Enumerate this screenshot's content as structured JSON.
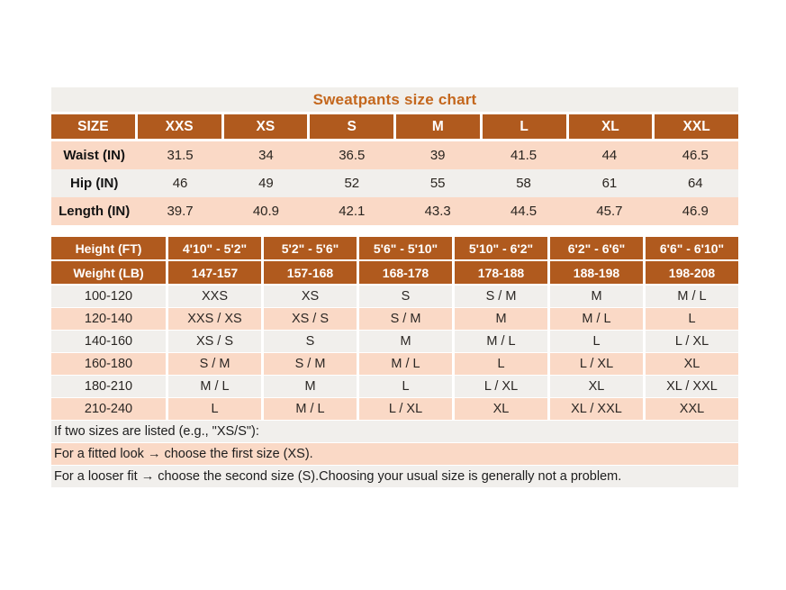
{
  "title": "Sweatpants size chart",
  "colors": {
    "header_orange": "#b05a1e",
    "title_orange": "#c4671d",
    "row_pink": "#fad9c6",
    "row_light": "#f1efec"
  },
  "size_table": {
    "header": [
      "SIZE",
      "XXS",
      "XS",
      "S",
      "M",
      "L",
      "XL",
      "XXL"
    ],
    "rows": [
      {
        "label": "Waist (IN)",
        "values": [
          "31.5",
          "34",
          "36.5",
          "39",
          "41.5",
          "44",
          "46.5"
        ]
      },
      {
        "label": "Hip (IN)",
        "values": [
          "46",
          "49",
          "52",
          "55",
          "58",
          "61",
          "64"
        ]
      },
      {
        "label": "Length (IN)",
        "values": [
          "39.7",
          "40.9",
          "42.1",
          "43.3",
          "44.5",
          "45.7",
          "46.9"
        ]
      }
    ]
  },
  "fit_table": {
    "height_header": {
      "label": "Height (FT)",
      "values": [
        "4'10\" - 5'2\"",
        "5'2\" - 5'6\"",
        "5'6\" - 5'10\"",
        "5'10\" - 6'2\"",
        "6'2\" - 6'6\"",
        "6'6\" - 6'10\""
      ]
    },
    "weight_header": {
      "label": "Weight (LB)",
      "values": [
        "147-157",
        "157-168",
        "168-178",
        "178-188",
        "188-198",
        "198-208"
      ]
    },
    "rows": [
      {
        "label": "100-120",
        "values": [
          "XXS",
          "XS",
          "S",
          "S / M",
          "M",
          "M / L"
        ]
      },
      {
        "label": "120-140",
        "values": [
          "XXS / XS",
          "XS / S",
          "S / M",
          "M",
          "M / L",
          "L"
        ]
      },
      {
        "label": "140-160",
        "values": [
          "XS / S",
          "S",
          "M",
          "M / L",
          "L",
          "L / XL"
        ]
      },
      {
        "label": "160-180",
        "values": [
          "S / M",
          "S / M",
          "M / L",
          "L",
          "L / XL",
          "XL"
        ]
      },
      {
        "label": "180-210",
        "values": [
          "M / L",
          "M",
          "L",
          "L / XL",
          "XL",
          "XL / XXL"
        ]
      },
      {
        "label": "210-240",
        "values": [
          "L",
          "M / L",
          "L / XL",
          "XL",
          "XL / XXL",
          "XXL"
        ]
      }
    ]
  },
  "notes": [
    "If two sizes are listed (e.g., \"XS/S\"):",
    "For a fitted look → choose the first size (XS).",
    "For a looser fit → choose the second size (S).Choosing your usual size is generally not a problem."
  ]
}
